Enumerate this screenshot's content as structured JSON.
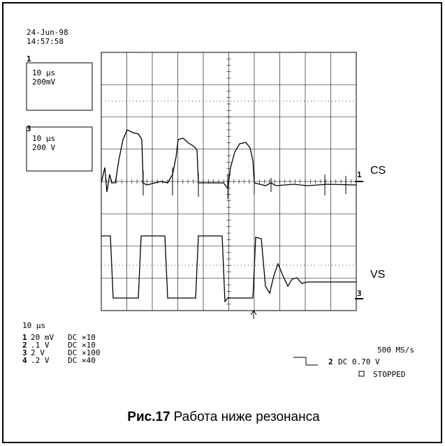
{
  "header": {
    "date": "24-Jun-98",
    "time": "14:57:58"
  },
  "channel_boxes": [
    {
      "number": "1",
      "timebase": "10 µs",
      "scale": "200mV"
    },
    {
      "number": "3",
      "timebase": "10 µs",
      "scale": "200 V"
    }
  ],
  "traces": [
    {
      "label": "CS",
      "marker": "1"
    },
    {
      "label": "VS",
      "marker": "3"
    }
  ],
  "timebase": "10 µs",
  "channels": [
    {
      "number": "1",
      "volts": "20 mV",
      "coupling": "DC",
      "probe": "×10"
    },
    {
      "number": "2",
      "volts": ".1  V",
      "coupling": "DC",
      "probe": "×10"
    },
    {
      "number": "3",
      "volts": "2  V",
      "coupling": "DC",
      "probe": "×100"
    },
    {
      "number": "4",
      "volts": ".2  V",
      "coupling": "DC",
      "probe": "×40"
    }
  ],
  "trigger": {
    "channel": "2",
    "setting": "DC 0.70 V"
  },
  "sample_rate": "500 MS/s",
  "status": "STOPPED",
  "caption": {
    "figure": "Рис.17",
    "text": "Работа ниже резонанса"
  }
}
